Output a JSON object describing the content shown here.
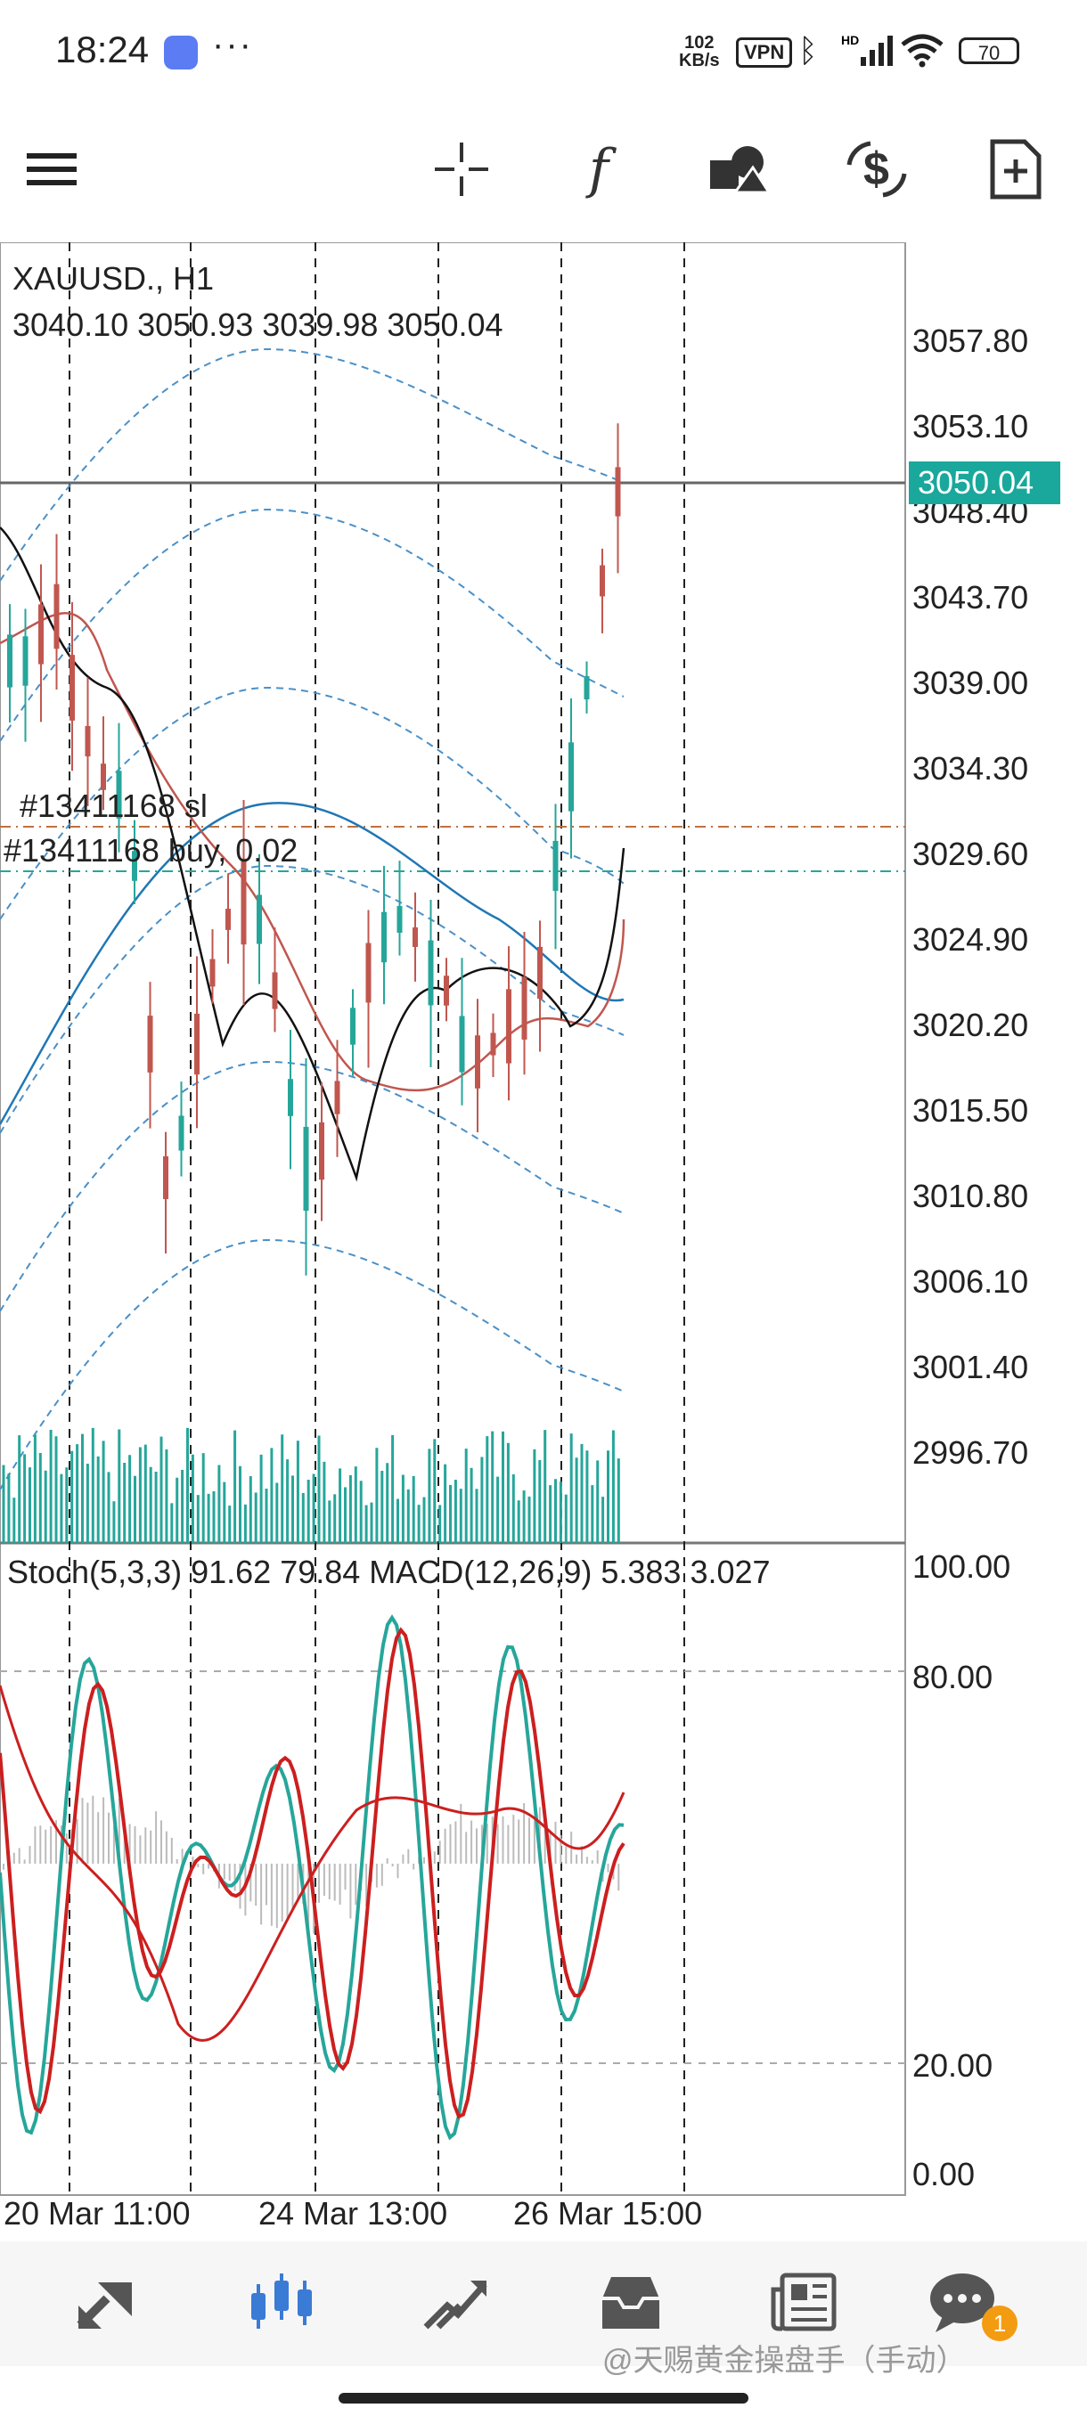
{
  "status_bar": {
    "time": "18:24",
    "more": "···",
    "speed_value": "102",
    "speed_unit": "KB/s",
    "vpn": "VPN",
    "signal_label": "HD",
    "battery": "70"
  },
  "toolbar": {
    "items": [
      "menu-icon",
      "crosshair-icon",
      "function-icon",
      "objects-icon",
      "trade-icon",
      "new-chart-icon"
    ]
  },
  "chart": {
    "symbol": "XAUUSD., H1",
    "ohlc": "3040.10 3050.93 3039.98 3050.04",
    "price_tag": "3050.04",
    "y_labels": [
      "3057.80",
      "3053.10",
      "3048.40",
      "3043.70",
      "3039.00",
      "3034.30",
      "3029.60",
      "3024.90",
      "3020.20",
      "3015.50",
      "3010.80",
      "3006.10",
      "3001.40",
      "2996.70"
    ],
    "order_sl_label": "#13411168 sl",
    "order_buy_label": "#13411168 buy, 0.02",
    "indicator_title": "Stoch(5,3,3) 91.62 79.84 MACD(12,26,9) 5.383 3.027",
    "indicator_y_labels": [
      "100.00",
      "80.00",
      "20.00",
      "0.00"
    ],
    "x_labels": [
      "20 Mar 11:00",
      "24 Mar 13:00",
      "26 Mar 15:00"
    ],
    "colors": {
      "bull": "#26a69a",
      "bear": "#c0574f",
      "ma_fast": "#111111",
      "ma_slow": "#c0574f",
      "ma_long": "#1f77b4",
      "bands": "#4a90c8",
      "sl_line": "#c0703f",
      "buy_line": "#26a69a",
      "stoch_main": "#26a69a",
      "stoch_signal": "#cc1f1f"
    }
  },
  "bottom_nav": {
    "items": [
      "quotes-icon",
      "chart-icon",
      "trade-icon",
      "history-icon",
      "news-icon",
      "messages-icon"
    ],
    "badge": "1"
  },
  "watermark": "@天赐黄金操盘手（手动）"
}
